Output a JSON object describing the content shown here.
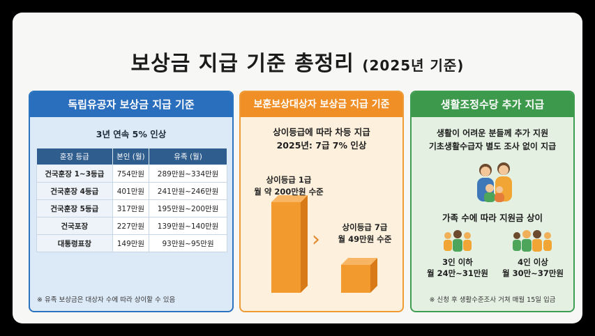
{
  "title": {
    "main": "보상금 지급 기준 총정리",
    "sub": "(2025년 기준)"
  },
  "panel1": {
    "header": "독립유공자 보상금 지급 기준",
    "lead": "3년 연속 5% 인상",
    "columns": [
      "훈장 등급",
      "본인 (월)",
      "유족 (월)"
    ],
    "rows": [
      [
        "건국훈장 1~3등급",
        "754만원",
        "289만원~334만원"
      ],
      [
        "건국훈장 4등급",
        "401만원",
        "241만원~246만원"
      ],
      [
        "건국훈장 5등급",
        "317만원",
        "195만원~200만원"
      ],
      [
        "건국포장",
        "227만원",
        "139만원~140만원"
      ],
      [
        "대통령표창",
        "149만원",
        "93만원~95만원"
      ]
    ],
    "note": "※ 유족 보상금은 대상자 수에 따라 상이할 수 있음"
  },
  "panel2": {
    "header": "보훈보상대상자 보상금 지급 기준",
    "lead1": "상이등급에 따라 차등 지급",
    "lead2": "2025년: 7급 7% 인상",
    "bar1_label1": "상이등급 1급",
    "bar1_label2": "월 약 200만원 수준",
    "bar2_label1": "상이등급 7급",
    "bar2_label2": "월 49만원 수준",
    "chevron": "›",
    "bar_values": [
      200,
      49
    ],
    "bar_color": "#f39a2e"
  },
  "panel3": {
    "header": "생활조정수당 추가 지급",
    "lead1": "생활이 어려운 분들께 추가 지원",
    "lead2": "기초생활수급자 별도 조사 없이 지급",
    "mid": "가족 수에 따라 지원금 상이",
    "group1_label": "3인 이하",
    "group1_amount": "월 24만~31만원",
    "group2_label": "4인 이상",
    "group2_amount": "월 30만~37만원",
    "note": "※ 신청 후 생활수준조사 거쳐 매월 15일 입금"
  }
}
